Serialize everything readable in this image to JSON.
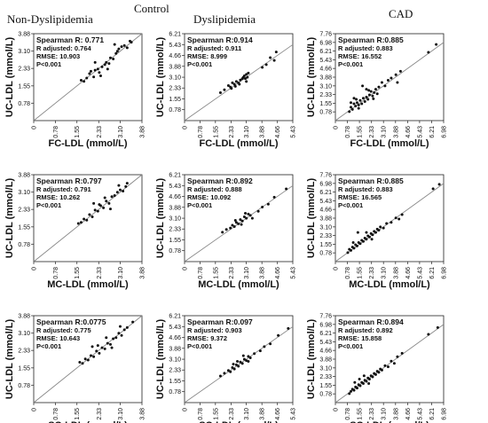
{
  "headings": {
    "top": "Control",
    "columns": [
      "Non-Dyslipidemia",
      "Dyslipidemia",
      "CAD"
    ]
  },
  "chart_data": [
    {
      "type": "scatter",
      "group": "Non-Dyslipidemia",
      "xlabel": "FC-LDL (mmol/L)",
      "ylabel": "UC-LDL (mmol/L)",
      "xlim": [
        0,
        3.88
      ],
      "ylim": [
        0,
        3.88
      ],
      "xticks": [
        "0",
        "0.78",
        "1.55",
        "2.33",
        "3.10",
        "3.88"
      ],
      "yticks": [
        "0.78",
        "1.55",
        "2.33",
        "3.10",
        "3.88"
      ],
      "annotations": [
        "Spearman R: 0.771",
        "R adjusted: 0.764",
        "RMSE: 10.903",
        "P<0.001"
      ],
      "points": [
        [
          1.7,
          1.8
        ],
        [
          1.8,
          1.75
        ],
        [
          1.9,
          1.9
        ],
        [
          2.0,
          2.1
        ],
        [
          2.05,
          2.2
        ],
        [
          2.15,
          1.95
        ],
        [
          2.2,
          2.25
        ],
        [
          2.3,
          2.3
        ],
        [
          2.35,
          2.15
        ],
        [
          2.45,
          2.4
        ],
        [
          2.55,
          2.5
        ],
        [
          2.6,
          2.6
        ],
        [
          2.7,
          2.55
        ],
        [
          2.75,
          2.8
        ],
        [
          2.85,
          2.75
        ],
        [
          2.95,
          3.0
        ],
        [
          3.0,
          3.1
        ],
        [
          3.05,
          3.2
        ],
        [
          3.15,
          3.3
        ],
        [
          3.25,
          3.35
        ],
        [
          3.35,
          3.25
        ],
        [
          2.4,
          2.0
        ],
        [
          2.65,
          2.3
        ],
        [
          2.9,
          3.4
        ],
        [
          3.45,
          3.55
        ],
        [
          3.5,
          3.5
        ],
        [
          2.2,
          2.6
        ]
      ]
    },
    {
      "type": "scatter",
      "group": "Dyslipidemia",
      "xlabel": "FC-LDL (mmol/L)",
      "ylabel": "UC-LDL (mmol/L)",
      "xlim": [
        0,
        5.43
      ],
      "ylim": [
        0,
        6.21
      ],
      "xticks": [
        "0",
        "0.78",
        "1.55",
        "2.33",
        "3.10",
        "3.88",
        "4.66",
        "5.43"
      ],
      "yticks": [
        "0.78",
        "1.55",
        "2.33",
        "3.10",
        "3.88",
        "4.66",
        "5.43",
        "6.21"
      ],
      "annotations": [
        "Spearman R:0.914",
        "R adjusted: 0.911",
        "RMSE: 8.999",
        "P<0.001"
      ],
      "points": [
        [
          1.8,
          2.0
        ],
        [
          2.0,
          2.2
        ],
        [
          2.2,
          2.5
        ],
        [
          2.3,
          2.4
        ],
        [
          2.4,
          2.7
        ],
        [
          2.5,
          2.6
        ],
        [
          2.6,
          2.8
        ],
        [
          2.7,
          2.7
        ],
        [
          2.8,
          2.9
        ],
        [
          2.9,
          3.0
        ],
        [
          3.0,
          3.2
        ],
        [
          3.05,
          3.0
        ],
        [
          3.1,
          3.3
        ],
        [
          3.15,
          3.1
        ],
        [
          3.2,
          3.4
        ],
        [
          2.55,
          2.45
        ],
        [
          2.75,
          2.6
        ],
        [
          2.95,
          3.1
        ],
        [
          3.1,
          2.8
        ],
        [
          2.35,
          2.3
        ],
        [
          3.9,
          3.8
        ],
        [
          4.1,
          4.0
        ],
        [
          4.3,
          4.5
        ],
        [
          4.5,
          4.3
        ],
        [
          4.6,
          4.9
        ]
      ]
    },
    {
      "type": "scatter",
      "group": "CAD",
      "xlabel": "FC-LDL (mmol/L)",
      "ylabel": "UC-LDL (mmol/L)",
      "xlim": [
        0,
        6.98
      ],
      "ylim": [
        0,
        7.76
      ],
      "xticks": [
        "0",
        "0.78",
        "1.55",
        "2.33",
        "3.10",
        "3.88",
        "4.66",
        "5.43",
        "6.21",
        "6.98"
      ],
      "yticks": [
        "0.78",
        "1.55",
        "2.33",
        "3.10",
        "3.88",
        "4.66",
        "5.43",
        "6.21",
        "6.98",
        "7.76"
      ],
      "annotations": [
        "Spearman R:0.885",
        "R adjusted: 0.883",
        "RMSE: 16.552",
        "P<0.001"
      ],
      "points": [
        [
          0.9,
          0.8
        ],
        [
          1.0,
          1.2
        ],
        [
          1.1,
          1.0
        ],
        [
          1.2,
          1.5
        ],
        [
          1.3,
          1.3
        ],
        [
          1.4,
          1.6
        ],
        [
          1.5,
          1.4
        ],
        [
          1.6,
          1.8
        ],
        [
          1.7,
          1.5
        ],
        [
          1.8,
          2.0
        ],
        [
          1.9,
          1.7
        ],
        [
          2.0,
          2.1
        ],
        [
          2.1,
          1.9
        ],
        [
          2.2,
          2.3
        ],
        [
          2.3,
          2.6
        ],
        [
          2.4,
          2.2
        ],
        [
          2.5,
          2.5
        ],
        [
          2.6,
          2.8
        ],
        [
          2.7,
          2.4
        ],
        [
          2.8,
          3.0
        ],
        [
          1.2,
          2.0
        ],
        [
          1.5,
          1.1
        ],
        [
          1.75,
          3.1
        ],
        [
          2.0,
          2.8
        ],
        [
          2.45,
          1.95
        ],
        [
          3.0,
          3.4
        ],
        [
          3.2,
          3.1
        ],
        [
          3.4,
          3.6
        ],
        [
          3.6,
          3.8
        ],
        [
          3.9,
          4.1
        ],
        [
          4.0,
          3.4
        ],
        [
          4.2,
          4.4
        ],
        [
          1.0,
          1.6
        ],
        [
          1.35,
          1.9
        ],
        [
          2.15,
          2.7
        ],
        [
          6.0,
          6.1
        ],
        [
          6.5,
          6.8
        ]
      ]
    },
    {
      "type": "scatter",
      "group": "Non-Dyslipidemia",
      "xlabel": "MC-LDL (mmol/L)",
      "ylabel": "UC-LDL (mmol/L)",
      "xlim": [
        0,
        3.88
      ],
      "ylim": [
        0,
        3.88
      ],
      "xticks": [
        "0",
        "0.78",
        "1.55",
        "2.33",
        "3.10",
        "3.88"
      ],
      "yticks": [
        "0.78",
        "1.55",
        "2.33",
        "3.10",
        "3.88"
      ],
      "annotations": [
        "Spearman R:0.797",
        "R adjusted: 0.791",
        "RMSE: 10.262",
        "P<0.001"
      ],
      "points": [
        [
          1.6,
          1.7
        ],
        [
          1.7,
          1.75
        ],
        [
          1.8,
          1.9
        ],
        [
          1.9,
          1.85
        ],
        [
          2.0,
          2.1
        ],
        [
          2.1,
          2.0
        ],
        [
          2.2,
          2.3
        ],
        [
          2.3,
          2.25
        ],
        [
          2.4,
          2.5
        ],
        [
          2.5,
          2.4
        ],
        [
          2.6,
          2.7
        ],
        [
          2.7,
          2.6
        ],
        [
          2.8,
          2.9
        ],
        [
          2.9,
          2.95
        ],
        [
          3.0,
          3.1
        ],
        [
          3.1,
          3.2
        ],
        [
          3.2,
          3.15
        ],
        [
          3.3,
          3.35
        ],
        [
          2.35,
          2.55
        ],
        [
          2.55,
          2.85
        ],
        [
          2.75,
          2.35
        ],
        [
          3.05,
          3.4
        ],
        [
          3.35,
          3.5
        ],
        [
          2.15,
          2.6
        ]
      ]
    },
    {
      "type": "scatter",
      "group": "Dyslipidemia",
      "xlabel": "MC-LDL (mmol/L)",
      "ylabel": "UC-LDL (mmol/L)",
      "xlim": [
        0,
        5.43
      ],
      "ylim": [
        0,
        6.21
      ],
      "xticks": [
        "0",
        "0.78",
        "1.55",
        "2.33",
        "3.10",
        "3.88",
        "4.66",
        "5.43"
      ],
      "yticks": [
        "0.78",
        "1.55",
        "2.33",
        "3.10",
        "3.88",
        "4.66",
        "5.43",
        "6.21"
      ],
      "annotations": [
        "Spearman R:0.892",
        "R adjusted: 0.888",
        "RMSE: 10.092",
        "P<0.001"
      ],
      "points": [
        [
          1.9,
          2.1
        ],
        [
          2.1,
          2.3
        ],
        [
          2.3,
          2.4
        ],
        [
          2.4,
          2.6
        ],
        [
          2.5,
          2.5
        ],
        [
          2.6,
          2.8
        ],
        [
          2.7,
          2.7
        ],
        [
          2.8,
          3.0
        ],
        [
          2.9,
          2.9
        ],
        [
          3.0,
          3.2
        ],
        [
          3.1,
          3.1
        ],
        [
          3.2,
          3.4
        ],
        [
          3.3,
          3.3
        ],
        [
          2.55,
          2.95
        ],
        [
          2.85,
          2.65
        ],
        [
          3.05,
          3.45
        ],
        [
          3.4,
          3.1
        ],
        [
          3.7,
          3.6
        ],
        [
          3.9,
          3.9
        ],
        [
          4.2,
          4.1
        ],
        [
          4.5,
          4.6
        ],
        [
          5.1,
          5.2
        ]
      ]
    },
    {
      "type": "scatter",
      "group": "CAD",
      "xlabel": "MC-LDL (mmol/L)",
      "ylabel": "UC-LDL (mmol/L)",
      "xlim": [
        0,
        6.98
      ],
      "ylim": [
        0,
        7.76
      ],
      "xticks": [
        "0",
        "0.78",
        "1.55",
        "2.33",
        "3.10",
        "3.88",
        "4.66",
        "5.43",
        "6.21",
        "6.98"
      ],
      "yticks": [
        "0.78",
        "1.55",
        "2.33",
        "3.10",
        "3.88",
        "4.66",
        "5.43",
        "6.21",
        "6.98",
        "7.76"
      ],
      "annotations": [
        "Spearman R:0.885",
        "R adjusted: 0.883",
        "RMSE: 16.565",
        "P<0.001"
      ],
      "points": [
        [
          0.8,
          0.8
        ],
        [
          0.9,
          1.1
        ],
        [
          1.0,
          1.0
        ],
        [
          1.1,
          1.3
        ],
        [
          1.2,
          1.2
        ],
        [
          1.3,
          1.5
        ],
        [
          1.4,
          1.4
        ],
        [
          1.5,
          1.7
        ],
        [
          1.6,
          1.6
        ],
        [
          1.7,
          1.9
        ],
        [
          1.8,
          1.8
        ],
        [
          1.9,
          2.1
        ],
        [
          2.0,
          2.0
        ],
        [
          2.1,
          2.3
        ],
        [
          2.2,
          2.2
        ],
        [
          2.3,
          2.5
        ],
        [
          2.4,
          2.4
        ],
        [
          2.5,
          2.7
        ],
        [
          2.6,
          2.6
        ],
        [
          2.7,
          2.9
        ],
        [
          2.8,
          2.8
        ],
        [
          1.15,
          1.7
        ],
        [
          1.45,
          2.6
        ],
        [
          2.0,
          2.6
        ],
        [
          2.35,
          2.0
        ],
        [
          2.9,
          3.1
        ],
        [
          3.1,
          3.0
        ],
        [
          3.3,
          3.4
        ],
        [
          3.6,
          3.5
        ],
        [
          3.9,
          3.9
        ],
        [
          4.1,
          3.8
        ],
        [
          4.3,
          4.2
        ],
        [
          6.3,
          6.5
        ],
        [
          6.7,
          6.9
        ]
      ]
    },
    {
      "type": "scatter",
      "group": "Non-Dyslipidemia",
      "xlabel": "SC-LDL (mmol/L)",
      "ylabel": "UC-LDL (mmol/L)",
      "xlim": [
        0,
        3.88
      ],
      "ylim": [
        0,
        3.88
      ],
      "xticks": [
        "0",
        "0.78",
        "1.55",
        "2.33",
        "3.10",
        "3.88"
      ],
      "yticks": [
        "0.78",
        "1.55",
        "2.33",
        "3.10",
        "3.88"
      ],
      "annotations": [
        "Spearman R:0.0775",
        "R adjusted: 0.775",
        "RMSE: 10.643",
        "P<0.001"
      ],
      "points": [
        [
          1.65,
          1.8
        ],
        [
          1.75,
          1.75
        ],
        [
          1.85,
          1.95
        ],
        [
          1.95,
          1.9
        ],
        [
          2.05,
          2.1
        ],
        [
          2.15,
          2.05
        ],
        [
          2.25,
          2.3
        ],
        [
          2.35,
          2.2
        ],
        [
          2.45,
          2.45
        ],
        [
          2.55,
          2.4
        ],
        [
          2.65,
          2.65
        ],
        [
          2.75,
          2.6
        ],
        [
          2.85,
          2.85
        ],
        [
          2.95,
          2.9
        ],
        [
          3.05,
          3.1
        ],
        [
          3.15,
          3.0
        ],
        [
          3.25,
          3.25
        ],
        [
          2.3,
          2.55
        ],
        [
          2.6,
          2.9
        ],
        [
          2.8,
          2.45
        ],
        [
          3.1,
          3.4
        ],
        [
          3.35,
          3.35
        ],
        [
          3.55,
          3.6
        ],
        [
          2.1,
          2.5
        ]
      ]
    },
    {
      "type": "scatter",
      "group": "Dyslipidemia",
      "xlabel": "SC-LDL (mmol/L)",
      "ylabel": "UC-LDL (mmol/L)",
      "xlim": [
        0,
        5.43
      ],
      "ylim": [
        0,
        6.21
      ],
      "xticks": [
        "0",
        "0.78",
        "1.55",
        "2.33",
        "3.10",
        "3.88",
        "4.66",
        "5.43"
      ],
      "yticks": [
        "0.78",
        "1.55",
        "2.33",
        "3.10",
        "3.88",
        "4.66",
        "5.43",
        "6.21"
      ],
      "annotations": [
        "Spearman R:0.097",
        "R adjusted: 0.903",
        "RMSE: 9.372",
        "P<0.001"
      ],
      "points": [
        [
          1.8,
          1.9
        ],
        [
          2.0,
          2.1
        ],
        [
          2.2,
          2.3
        ],
        [
          2.3,
          2.2
        ],
        [
          2.4,
          2.5
        ],
        [
          2.5,
          2.4
        ],
        [
          2.6,
          2.7
        ],
        [
          2.7,
          2.6
        ],
        [
          2.8,
          2.9
        ],
        [
          2.9,
          2.8
        ],
        [
          3.0,
          3.1
        ],
        [
          3.1,
          3.0
        ],
        [
          3.2,
          3.3
        ],
        [
          3.3,
          3.2
        ],
        [
          2.45,
          2.75
        ],
        [
          2.65,
          2.95
        ],
        [
          2.95,
          3.35
        ],
        [
          3.2,
          2.95
        ],
        [
          3.5,
          3.5
        ],
        [
          3.8,
          3.7
        ],
        [
          4.0,
          4.0
        ],
        [
          4.3,
          4.2
        ],
        [
          4.7,
          4.8
        ],
        [
          5.2,
          5.3
        ]
      ]
    },
    {
      "type": "scatter",
      "group": "CAD",
      "xlabel": "SC-LDL (mmol/L)",
      "ylabel": "UC-LDL (mmol/L)",
      "xlim": [
        0,
        6.98
      ],
      "ylim": [
        0,
        7.76
      ],
      "xticks": [
        "0",
        "0.78",
        "1.55",
        "2.33",
        "3.10",
        "3.88",
        "4.66",
        "5.43",
        "6.21",
        "6.98"
      ],
      "yticks": [
        "0.78",
        "1.55",
        "2.33",
        "3.10",
        "3.88",
        "4.66",
        "5.43",
        "6.21",
        "6.98",
        "7.76"
      ],
      "annotations": [
        "Spearman R:0.894",
        "R adjusted: 0.892",
        "RMSE: 15.858",
        "P<0.001"
      ],
      "points": [
        [
          0.9,
          0.8
        ],
        [
          1.0,
          1.0
        ],
        [
          1.1,
          1.2
        ],
        [
          1.2,
          1.1
        ],
        [
          1.3,
          1.4
        ],
        [
          1.4,
          1.3
        ],
        [
          1.5,
          1.6
        ],
        [
          1.6,
          1.5
        ],
        [
          1.7,
          1.8
        ],
        [
          1.8,
          1.7
        ],
        [
          1.9,
          2.0
        ],
        [
          2.0,
          1.9
        ],
        [
          2.1,
          2.2
        ],
        [
          2.2,
          2.1
        ],
        [
          2.3,
          2.4
        ],
        [
          2.4,
          2.3
        ],
        [
          2.5,
          2.6
        ],
        [
          2.6,
          2.5
        ],
        [
          2.7,
          2.8
        ],
        [
          2.8,
          2.7
        ],
        [
          1.25,
          1.8
        ],
        [
          1.55,
          2.1
        ],
        [
          1.85,
          2.4
        ],
        [
          2.15,
          1.7
        ],
        [
          2.9,
          3.0
        ],
        [
          3.0,
          2.9
        ],
        [
          3.2,
          3.3
        ],
        [
          3.4,
          3.2
        ],
        [
          3.6,
          3.7
        ],
        [
          3.8,
          3.5
        ],
        [
          4.0,
          4.1
        ],
        [
          4.3,
          4.4
        ],
        [
          6.0,
          6.1
        ],
        [
          6.6,
          6.7
        ]
      ]
    }
  ]
}
